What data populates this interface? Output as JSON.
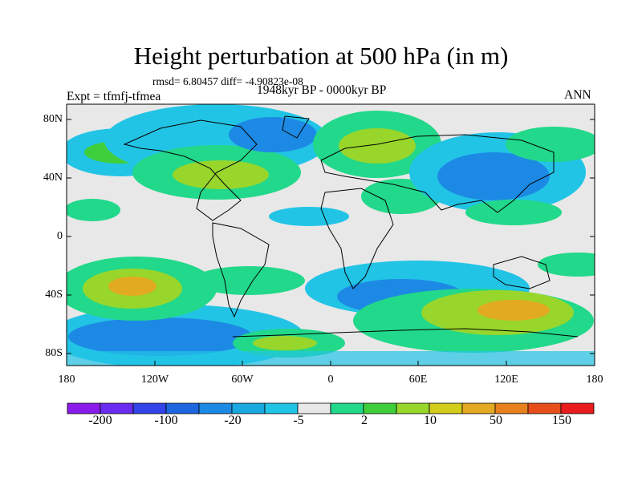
{
  "title": "Height perturbation at 500 hPa (in m)",
  "stats": "rmsd= 6.80457 diff= -4.90823e-08",
  "expt": "Expt = tfmfj-tfmea",
  "period": "1948kyr BP - 0000kyr BP",
  "season": "ANN",
  "lat_ticks": [
    "80N",
    "40N",
    "0",
    "40S",
    "80S"
  ],
  "lon_ticks": [
    "180",
    "120W",
    "60W",
    "0",
    "60E",
    "120E",
    "180"
  ],
  "colorbar": {
    "colors": [
      "#8a1bea",
      "#6a2cf0",
      "#3344e8",
      "#1d66e0",
      "#1c8ae4",
      "#19a9e0",
      "#22c4e6",
      "#e8e8e8",
      "#22d88a",
      "#40cf3c",
      "#98d62c",
      "#d2cc1a",
      "#e2aa20",
      "#e8801e",
      "#e84e1a",
      "#e81c1c"
    ],
    "labels": [
      "-200",
      "-100",
      "-20",
      "-5",
      "2",
      "10",
      "50",
      "150"
    ]
  },
  "palette": {
    "neg_light": "#22c4e6",
    "neg_mid": "#1c8ae4",
    "neg_strong": "#1d66e0",
    "neutral": "#e8e8e8",
    "pos_light": "#22d88a",
    "pos_mid": "#40cf3c",
    "pos_strong": "#98d62c",
    "pos_peak": "#d2cc1a",
    "pos_max": "#e2aa20"
  }
}
